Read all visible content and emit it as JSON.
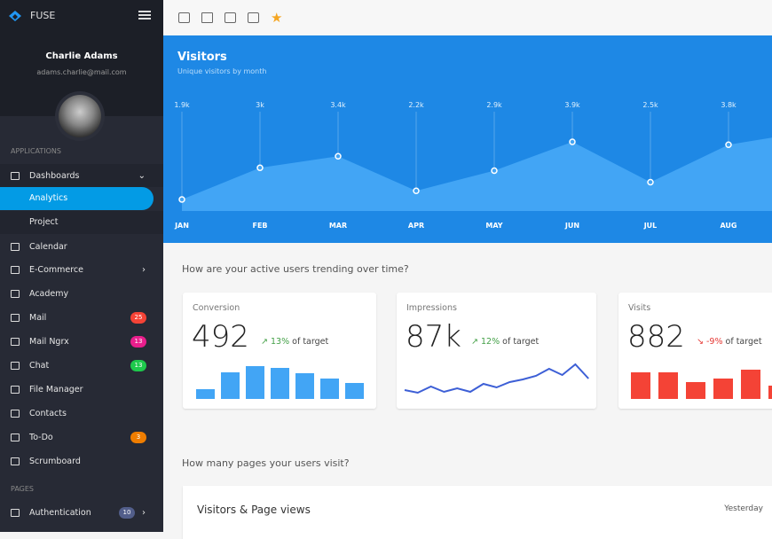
{
  "app": {
    "name": "FUSE"
  },
  "user": {
    "name": "Charlie Adams",
    "email": "adams.charlie@mail.com"
  },
  "sidebar": {
    "section_applications": "APPLICATIONS",
    "section_pages": "PAGES",
    "dashboards": "Dashboards",
    "sub": [
      {
        "label": "Analytics",
        "active": true
      },
      {
        "label": "Project"
      }
    ],
    "items": [
      {
        "label": "Calendar",
        "icon": "calendar-icon"
      },
      {
        "label": "E-Commerce",
        "icon": "cart-icon",
        "arrow": "›"
      },
      {
        "label": "Academy",
        "icon": "school-icon"
      },
      {
        "label": "Mail",
        "icon": "mail-icon",
        "badge": "25",
        "badge_color": "#f44336"
      },
      {
        "label": "Mail Ngrx",
        "icon": "mail-icon",
        "badge": "13",
        "badge_color": "#e91e8c"
      },
      {
        "label": "Chat",
        "icon": "chat-icon",
        "badge": "13",
        "badge_color": "#1ec94c"
      },
      {
        "label": "File Manager",
        "icon": "folder-icon"
      },
      {
        "label": "Contacts",
        "icon": "contacts-icon"
      },
      {
        "label": "To-Do",
        "icon": "checkbox-icon",
        "badge": "3",
        "badge_color": "#ef7d00"
      },
      {
        "label": "Scrumboard",
        "icon": "board-icon"
      }
    ],
    "auth": {
      "label": "Authentication",
      "badge": "10",
      "badge_color": "#525e8a",
      "arrow": "›"
    },
    "dash_arrow": "⌄"
  },
  "toolbar": {
    "icons": [
      "calendar-icon",
      "mail-icon",
      "contacts-icon",
      "checkbox-icon",
      "star-icon"
    ],
    "star": "★"
  },
  "visitors": {
    "title": "Visitors",
    "subtitle": "Unique visitors by month",
    "months": [
      "JAN",
      "FEB",
      "MAR",
      "APR",
      "MAY",
      "JUN",
      "JUL",
      "AUG"
    ],
    "values": [
      1.9,
      3.0,
      3.4,
      2.2,
      2.9,
      3.9,
      2.5,
      3.8
    ],
    "labels": [
      "1.9k",
      "3k",
      "3.4k",
      "2.2k",
      "2.9k",
      "3.9k",
      "2.5k",
      "3.8k"
    ],
    "bg": "#1e88e5",
    "fill": "#42a5f5"
  },
  "question1": "How are your active users trending over time?",
  "cards": [
    {
      "title": "Conversion",
      "value": "492",
      "delta": "13%",
      "delta_suffix": "of target",
      "trend": "up",
      "color": "#42a5f5",
      "delta_color": "#43a047",
      "type": "bar",
      "data": [
        11,
        30,
        37,
        35,
        29,
        23,
        18
      ]
    },
    {
      "title": "Impressions",
      "value": "87k",
      "delta": "12%",
      "delta_suffix": "of target",
      "trend": "up",
      "color": "#3d5fd6",
      "delta_color": "#43a047",
      "type": "line",
      "data": [
        5,
        2,
        9,
        3,
        7,
        3,
        12,
        8,
        14,
        17,
        21,
        29,
        22,
        34,
        18
      ]
    },
    {
      "title": "Visits",
      "value": "882",
      "delta": "-9%",
      "delta_suffix": "of target",
      "trend": "down",
      "color": "#f44336",
      "delta_color": "#e53935",
      "type": "bar",
      "data": [
        30,
        30,
        19,
        23,
        33,
        15
      ]
    }
  ],
  "question2": "How many pages your users visit?",
  "pageviews": {
    "title": "Visitors & Page views",
    "range": "Yesterday"
  }
}
